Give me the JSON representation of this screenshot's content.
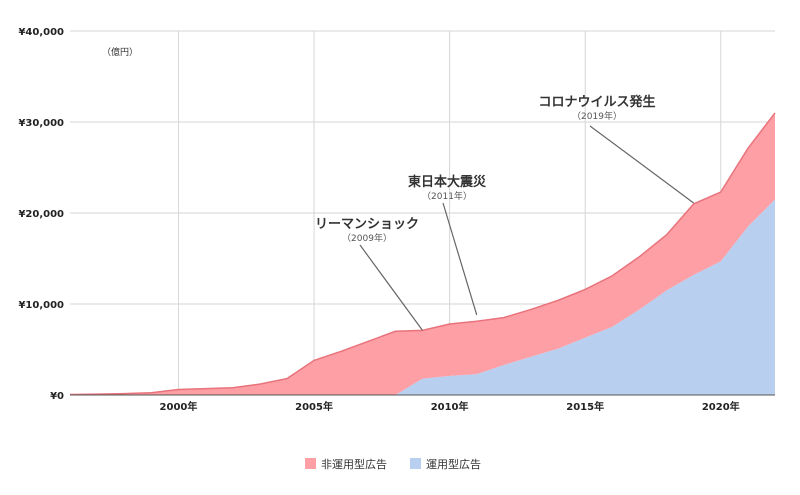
{
  "chart_data": {
    "type": "area",
    "stacked": true,
    "unit_label": "（億円）",
    "x": [
      1996,
      1997,
      1998,
      1999,
      2000,
      2001,
      2002,
      2003,
      2004,
      2005,
      2006,
      2007,
      2008,
      2009,
      2010,
      2011,
      2012,
      2013,
      2014,
      2015,
      2016,
      2017,
      2018,
      2019,
      2020,
      2021,
      2022
    ],
    "xlim": [
      1996,
      2022
    ],
    "ylim": [
      0,
      40000
    ],
    "y_ticks": [
      {
        "value": 0,
        "label": "¥0"
      },
      {
        "value": 10000,
        "label": "¥10,000"
      },
      {
        "value": 20000,
        "label": "¥20,000"
      },
      {
        "value": 30000,
        "label": "¥30,000"
      },
      {
        "value": 40000,
        "label": "¥40,000"
      }
    ],
    "x_ticks": [
      {
        "value": 2000,
        "label": "2000年"
      },
      {
        "value": 2005,
        "label": "2005年"
      },
      {
        "value": 2010,
        "label": "2010年"
      },
      {
        "value": 2015,
        "label": "2015年"
      },
      {
        "value": 2020,
        "label": "2020年"
      }
    ],
    "grid": true,
    "legend_position": "bottom",
    "series": [
      {
        "name": "運用型広告",
        "color": "#b8cff0",
        "values": [
          0,
          0,
          0,
          0,
          0,
          0,
          0,
          0,
          0,
          0,
          0,
          0,
          0,
          1800,
          2100,
          2300,
          3300,
          4200,
          5100,
          6300,
          7500,
          9400,
          11500,
          13200,
          14700,
          18500,
          21500
        ]
      },
      {
        "name": "非運用型広告",
        "color": "#fd9fa4",
        "edge_color": "#e8737c",
        "values": [
          50,
          100,
          150,
          250,
          600,
          700,
          800,
          1200,
          1800,
          3800,
          4800,
          5900,
          7000,
          5300,
          5700,
          5800,
          5200,
          5200,
          5300,
          5300,
          5600,
          5800,
          6100,
          7800,
          7600,
          8600,
          9500
        ]
      }
    ],
    "annotations": [
      {
        "title": "リーマンショック",
        "sub": "（2009年）",
        "x": 2009,
        "y": 7100
      },
      {
        "title": "東日本大震災",
        "sub": "（2011年）",
        "x": 2011,
        "y": 8800
      },
      {
        "title": "コロナウイルス発生",
        "sub": "（2019年）",
        "x": 2019,
        "y": 21100
      }
    ]
  }
}
